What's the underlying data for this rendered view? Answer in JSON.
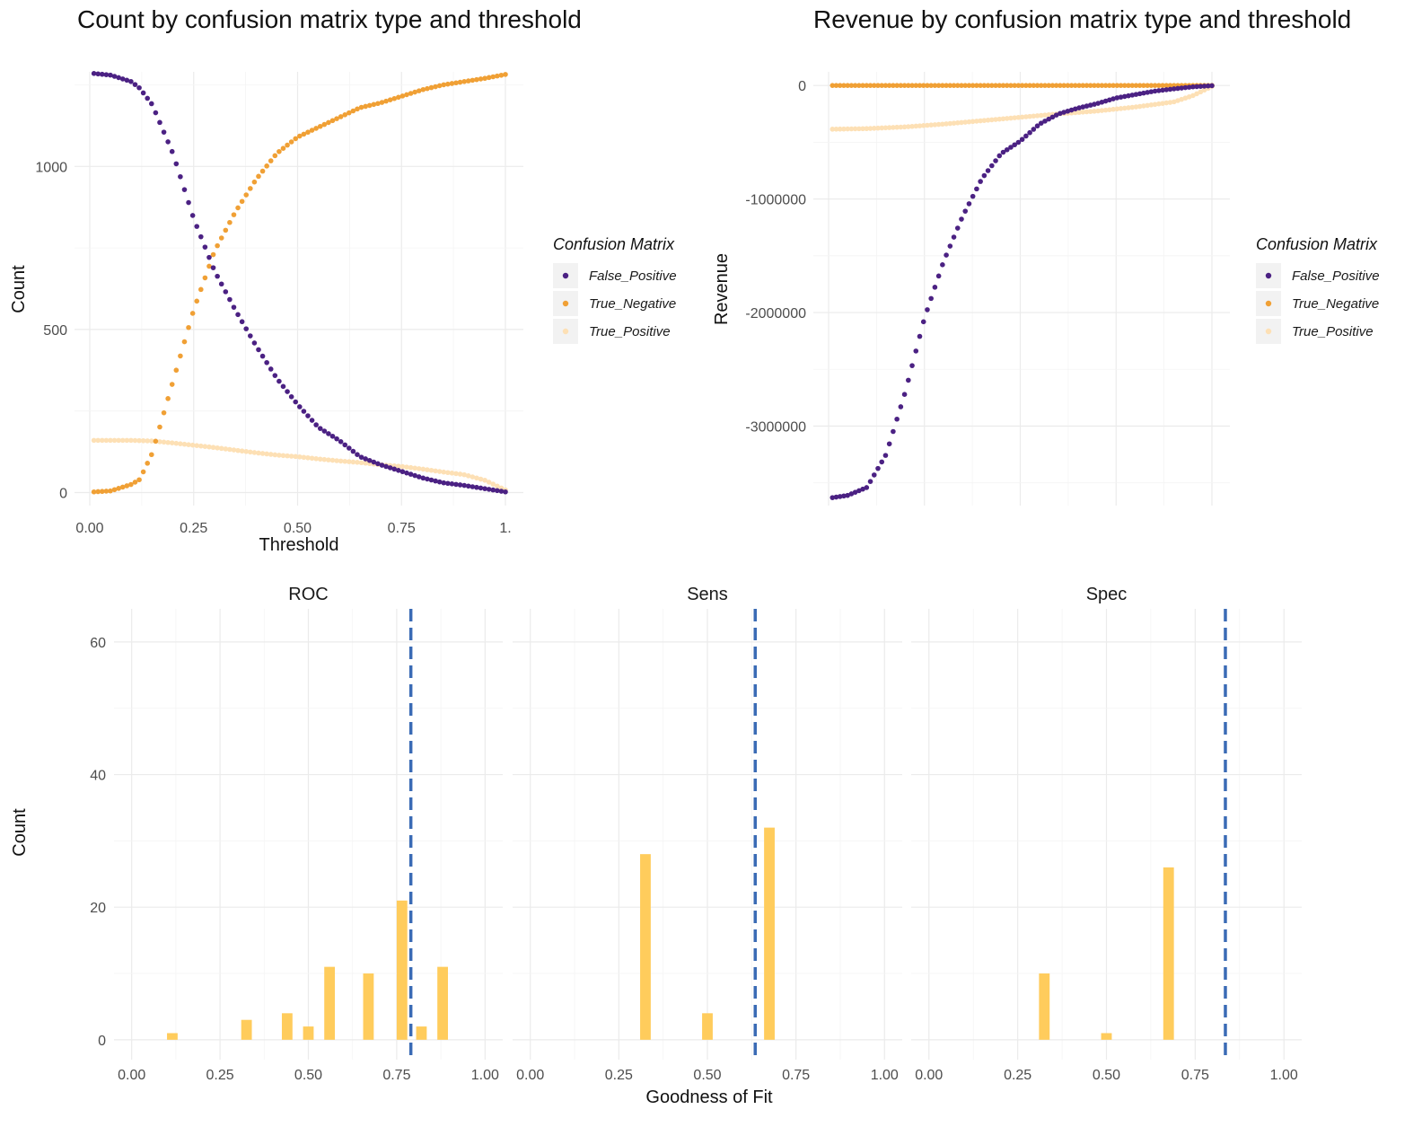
{
  "colors": {
    "False_Positive": "#4b2183",
    "True_Negative": "#f0a035",
    "True_Positive": "#fde0b5",
    "histogram_fill": "#ffcc5c",
    "vline": "#3a6bb5"
  },
  "chart_data": [
    {
      "type": "scatter",
      "title": "Count by confusion matrix type and threshold",
      "xlabel": "Threshold",
      "ylabel": "Count",
      "xlim": [
        0,
        1
      ],
      "ylim": [
        -40,
        1290
      ],
      "x_ticks": [
        "0.00",
        "0.25",
        "0.50",
        "0.75",
        "1."
      ],
      "x_tick_values": [
        0,
        0.25,
        0.5,
        0.75,
        1
      ],
      "y_ticks": [
        "0",
        "500",
        "1000"
      ],
      "y_tick_values": [
        0,
        500,
        1000
      ],
      "grid": true,
      "legend": {
        "title": "Confusion Matrix",
        "position": "right",
        "entries": [
          "False_Positive",
          "True_Negative",
          "True_Positive"
        ]
      },
      "series": [
        {
          "name": "False_Positive",
          "points": [
            [
              0.01,
              1285
            ],
            [
              0.05,
              1280
            ],
            [
              0.1,
              1260
            ],
            [
              0.12,
              1240
            ],
            [
              0.15,
              1190
            ],
            [
              0.2,
              1040
            ],
            [
              0.25,
              840
            ],
            [
              0.3,
              680
            ],
            [
              0.35,
              560
            ],
            [
              0.4,
              450
            ],
            [
              0.45,
              350
            ],
            [
              0.5,
              270
            ],
            [
              0.55,
              200
            ],
            [
              0.6,
              160
            ],
            [
              0.65,
              110
            ],
            [
              0.7,
              85
            ],
            [
              0.75,
              65
            ],
            [
              0.8,
              45
            ],
            [
              0.85,
              30
            ],
            [
              0.9,
              22
            ],
            [
              0.95,
              12
            ],
            [
              1.0,
              2
            ]
          ]
        },
        {
          "name": "True_Negative",
          "points": [
            [
              0.01,
              2
            ],
            [
              0.05,
              5
            ],
            [
              0.1,
              25
            ],
            [
              0.12,
              40
            ],
            [
              0.15,
              120
            ],
            [
              0.2,
              340
            ],
            [
              0.25,
              560
            ],
            [
              0.3,
              740
            ],
            [
              0.35,
              860
            ],
            [
              0.4,
              960
            ],
            [
              0.45,
              1040
            ],
            [
              0.5,
              1090
            ],
            [
              0.55,
              1120
            ],
            [
              0.6,
              1150
            ],
            [
              0.65,
              1180
            ],
            [
              0.7,
              1195
            ],
            [
              0.75,
              1215
            ],
            [
              0.8,
              1235
            ],
            [
              0.85,
              1250
            ],
            [
              0.9,
              1260
            ],
            [
              0.95,
              1270
            ],
            [
              1.0,
              1282
            ]
          ]
        },
        {
          "name": "True_Positive",
          "points": [
            [
              0.01,
              160
            ],
            [
              0.1,
              160
            ],
            [
              0.15,
              158
            ],
            [
              0.2,
              152
            ],
            [
              0.25,
              145
            ],
            [
              0.3,
              138
            ],
            [
              0.35,
              130
            ],
            [
              0.4,
              122
            ],
            [
              0.45,
              115
            ],
            [
              0.5,
              110
            ],
            [
              0.55,
              103
            ],
            [
              0.6,
              97
            ],
            [
              0.65,
              92
            ],
            [
              0.7,
              85
            ],
            [
              0.75,
              80
            ],
            [
              0.8,
              72
            ],
            [
              0.85,
              63
            ],
            [
              0.9,
              55
            ],
            [
              0.95,
              38
            ],
            [
              1.0,
              8
            ]
          ]
        }
      ]
    },
    {
      "type": "scatter",
      "title": "Revenue by confusion matrix type and threshold",
      "xlabel": "",
      "ylabel": "Revenue",
      "xlim": [
        0,
        1
      ],
      "ylim": [
        -3700000,
        120000
      ],
      "y_ticks": [
        "0",
        "-1000000",
        "-2000000",
        "-3000000"
      ],
      "y_tick_values": [
        0,
        -1000000,
        -2000000,
        -3000000
      ],
      "grid": true,
      "legend": {
        "title": "Confusion Matrix",
        "position": "right",
        "entries": [
          "False_Positive",
          "True_Negative",
          "True_Positive"
        ]
      },
      "series": [
        {
          "name": "False_Positive",
          "points": [
            [
              0.01,
              -3630000
            ],
            [
              0.05,
              -3610000
            ],
            [
              0.1,
              -3540000
            ],
            [
              0.15,
              -3250000
            ],
            [
              0.2,
              -2700000
            ],
            [
              0.25,
              -2050000
            ],
            [
              0.3,
              -1550000
            ],
            [
              0.35,
              -1150000
            ],
            [
              0.4,
              -820000
            ],
            [
              0.45,
              -600000
            ],
            [
              0.5,
              -490000
            ],
            [
              0.55,
              -340000
            ],
            [
              0.6,
              -250000
            ],
            [
              0.65,
              -200000
            ],
            [
              0.7,
              -160000
            ],
            [
              0.75,
              -110000
            ],
            [
              0.8,
              -80000
            ],
            [
              0.85,
              -50000
            ],
            [
              0.9,
              -30000
            ],
            [
              0.95,
              -12000
            ],
            [
              1.0,
              -2000
            ]
          ]
        },
        {
          "name": "True_Negative",
          "points": [
            [
              0.0,
              0
            ],
            [
              0.2,
              0
            ],
            [
              0.4,
              0
            ],
            [
              0.6,
              0
            ],
            [
              0.8,
              0
            ],
            [
              1.0,
              0
            ]
          ]
        },
        {
          "name": "True_Positive",
          "points": [
            [
              0.01,
              -385000
            ],
            [
              0.1,
              -380000
            ],
            [
              0.2,
              -365000
            ],
            [
              0.3,
              -340000
            ],
            [
              0.4,
              -310000
            ],
            [
              0.5,
              -280000
            ],
            [
              0.6,
              -250000
            ],
            [
              0.7,
              -225000
            ],
            [
              0.8,
              -190000
            ],
            [
              0.9,
              -145000
            ],
            [
              0.95,
              -90000
            ],
            [
              1.0,
              -8000
            ]
          ]
        }
      ]
    },
    {
      "type": "bar",
      "subtype": "histogram-facets",
      "xlabel": "Goodness of Fit",
      "ylabel": "Count",
      "xlim": [
        -0.05,
        1.05
      ],
      "ylim": [
        -3,
        65
      ],
      "x_ticks": [
        "0.00",
        "0.25",
        "0.50",
        "0.75",
        "1.00"
      ],
      "x_tick_values": [
        0,
        0.25,
        0.5,
        0.75,
        1
      ],
      "y_ticks": [
        "0",
        "20",
        "40",
        "60"
      ],
      "y_tick_values": [
        0,
        20,
        40,
        60
      ],
      "grid": true,
      "bin_width": 0.03,
      "facets": [
        {
          "label": "ROC",
          "vline": 0.79,
          "bars": [
            [
              0.115,
              1
            ],
            [
              0.325,
              3
            ],
            [
              0.44,
              4
            ],
            [
              0.5,
              2
            ],
            [
              0.56,
              11
            ],
            [
              0.67,
              10
            ],
            [
              0.765,
              21
            ],
            [
              0.82,
              2
            ],
            [
              0.88,
              11
            ]
          ]
        },
        {
          "label": "Sens",
          "vline": 0.635,
          "bars": [
            [
              0.325,
              28
            ],
            [
              0.5,
              4
            ],
            [
              0.675,
              32
            ]
          ]
        },
        {
          "label": "Spec",
          "vline": 0.835,
          "bars": [
            [
              0.325,
              10
            ],
            [
              0.5,
              1
            ],
            [
              0.675,
              26
            ]
          ]
        }
      ]
    }
  ]
}
